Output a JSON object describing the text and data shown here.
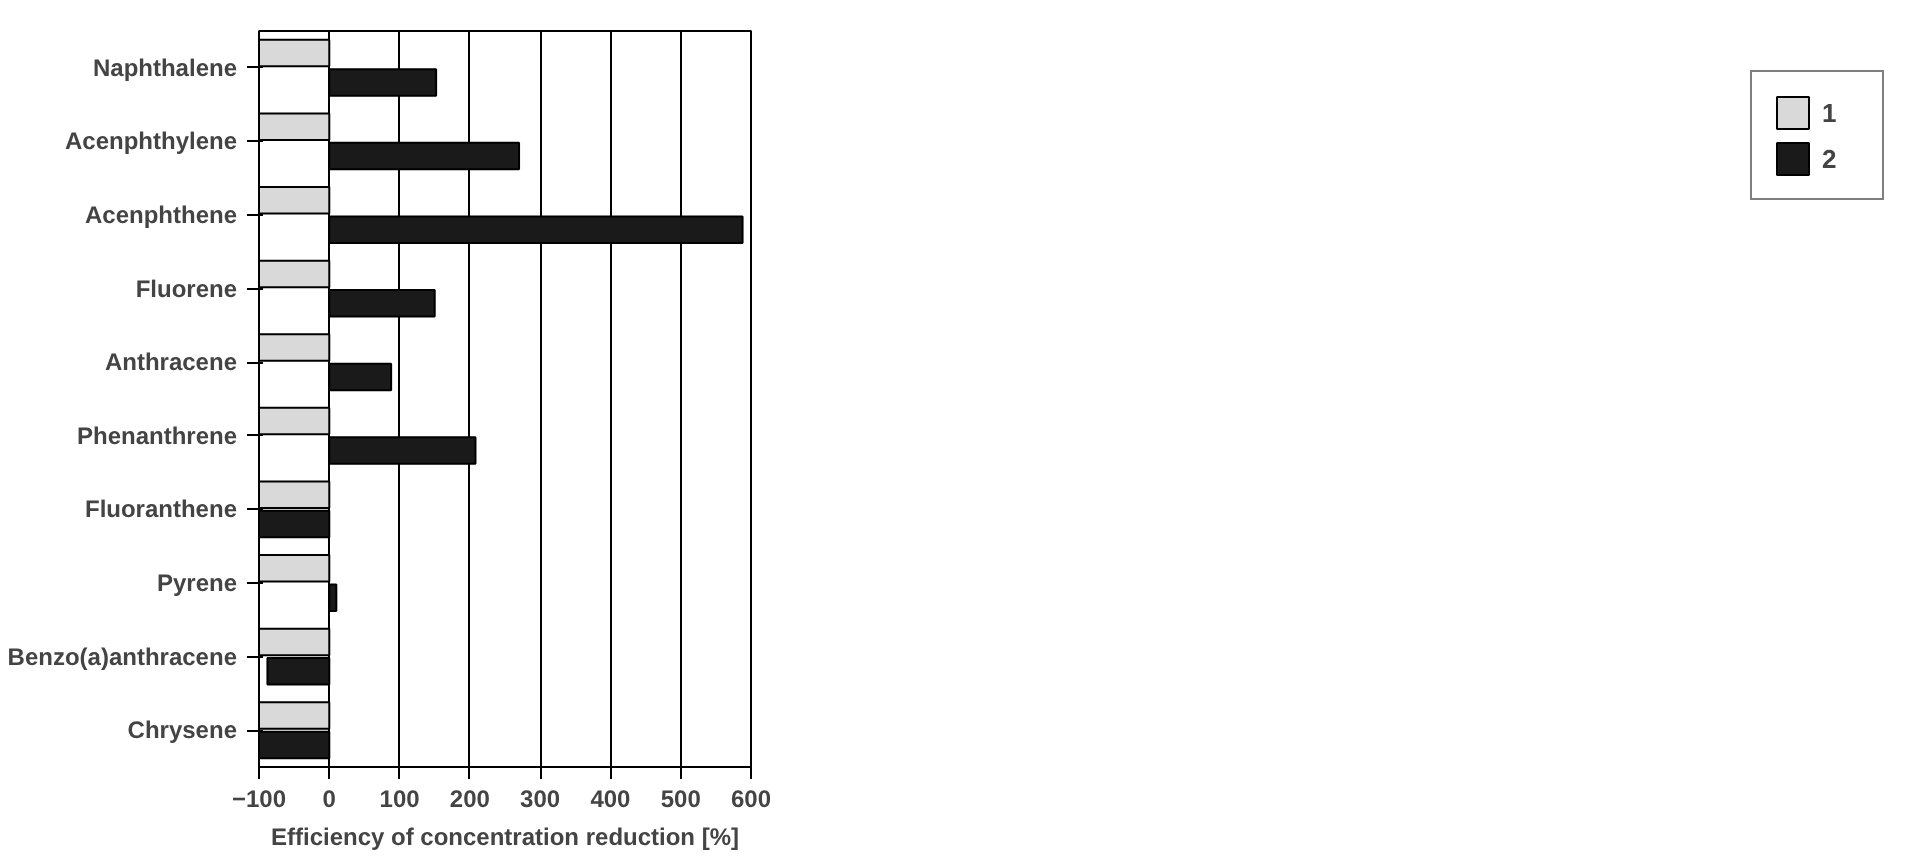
{
  "chart_data": {
    "type": "bar",
    "orientation": "horizontal",
    "xlabel": "Efficiency of concentration reduction [%]",
    "categories": [
      "Naphthalene",
      "Acenphthylene",
      "Acenphthene",
      "Fluorene",
      "Anthracene",
      "Phenanthrene",
      "Fluoranthene",
      "Pyrene",
      "Benzo(a)anthracene",
      "Chrysene"
    ],
    "series": [
      {
        "name": "1",
        "color": "#d9d9d9",
        "values": [
          -100,
          -100,
          -100,
          -100,
          -100,
          -100,
          -100,
          -100,
          -100,
          -100
        ]
      },
      {
        "name": "2",
        "color": "#1a1a1a",
        "values": [
          152,
          270,
          588,
          150,
          88,
          208,
          -100,
          10,
          -88,
          -100
        ]
      }
    ],
    "xlim": [
      -100,
      600
    ],
    "xticks": [
      -100,
      0,
      100,
      200,
      300,
      400,
      500,
      600
    ],
    "grid": "x",
    "legend": "right"
  }
}
